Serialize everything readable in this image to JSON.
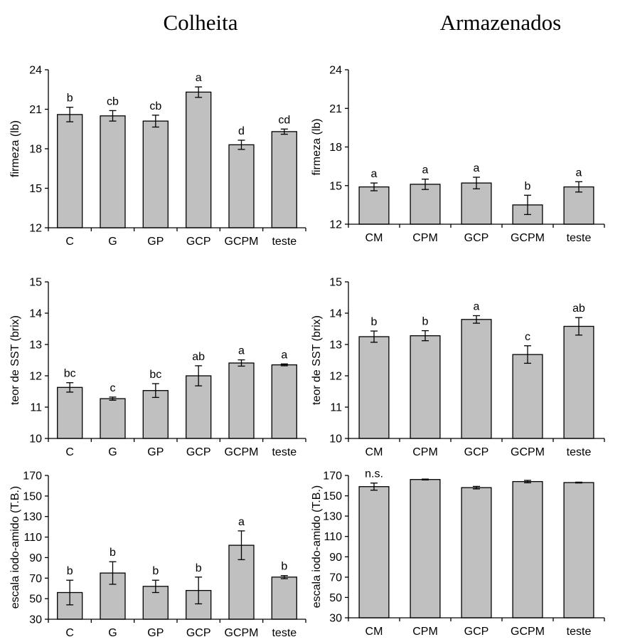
{
  "column_titles": [
    "Colheita",
    "Armazenados"
  ],
  "colors": {
    "bar_fill": "#c0c0c0",
    "stroke": "#000000"
  },
  "chart_data": [
    {
      "type": "bar",
      "column": "Colheita",
      "row": 1,
      "ylabel": "firmeza (lb)",
      "ylim": [
        12,
        24
      ],
      "yticks": [
        12,
        15,
        18,
        21,
        24
      ],
      "categories": [
        "C",
        "G",
        "GP",
        "GCP",
        "GCPM",
        "teste"
      ],
      "values": [
        20.6,
        20.5,
        20.1,
        22.3,
        18.3,
        19.3
      ],
      "errors": [
        0.55,
        0.4,
        0.45,
        0.4,
        0.35,
        0.2
      ],
      "labels": [
        "b",
        "cb",
        "cb",
        "a",
        "d",
        "cd"
      ]
    },
    {
      "type": "bar",
      "column": "Armazenados",
      "row": 1,
      "ylabel": "firmeza (lb)",
      "ylim": [
        12,
        24
      ],
      "yticks": [
        12,
        15,
        18,
        21,
        24
      ],
      "categories": [
        "CM",
        "CPM",
        "GCP",
        "GCPM",
        "teste"
      ],
      "values": [
        14.9,
        15.1,
        15.2,
        13.5,
        14.9
      ],
      "errors": [
        0.3,
        0.4,
        0.45,
        0.75,
        0.4
      ],
      "labels": [
        "a",
        "a",
        "a",
        "b",
        "a"
      ]
    },
    {
      "type": "bar",
      "column": "Colheita",
      "row": 2,
      "ylabel": "teor de SST (brix)",
      "ylim": [
        10,
        15
      ],
      "yticks": [
        10,
        11,
        12,
        13,
        14,
        15
      ],
      "categories": [
        "C",
        "G",
        "GP",
        "GCP",
        "GCPM",
        "teste"
      ],
      "values": [
        11.63,
        11.27,
        11.53,
        12.0,
        12.41,
        12.35
      ],
      "errors": [
        0.15,
        0.05,
        0.22,
        0.32,
        0.1,
        0.03
      ],
      "labels": [
        "bc",
        "c",
        "bc",
        "ab",
        "a",
        "a"
      ]
    },
    {
      "type": "bar",
      "column": "Armazenados",
      "row": 2,
      "ylabel": "teor de SST (brix)",
      "ylim": [
        10,
        15
      ],
      "yticks": [
        10,
        11,
        12,
        13,
        14,
        15
      ],
      "categories": [
        "CM",
        "CPM",
        "GCP",
        "GCPM",
        "teste"
      ],
      "values": [
        13.25,
        13.28,
        13.8,
        12.68,
        13.58
      ],
      "errors": [
        0.18,
        0.16,
        0.12,
        0.28,
        0.28
      ],
      "labels": [
        "b",
        "b",
        "a",
        "c",
        "ab"
      ]
    },
    {
      "type": "bar",
      "column": "Colheita",
      "row": 3,
      "ylabel": "escala iodo-amido (T.B.)",
      "ylim": [
        30,
        170
      ],
      "yticks": [
        30,
        50,
        70,
        90,
        110,
        130,
        150,
        170
      ],
      "categories": [
        "C",
        "G",
        "GP",
        "GCP",
        "GCPM",
        "teste"
      ],
      "values": [
        56,
        75,
        62,
        58,
        102,
        71
      ],
      "errors": [
        12,
        11,
        6,
        13,
        14,
        1.5
      ],
      "labels": [
        "b",
        "b",
        "b",
        "b",
        "a",
        "b"
      ]
    },
    {
      "type": "bar",
      "column": "Armazenados",
      "row": 3,
      "ylabel": "escala iodo-amido (T.B.)",
      "ylim": [
        30,
        170
      ],
      "yticks": [
        30,
        50,
        70,
        90,
        110,
        130,
        150,
        170
      ],
      "categories": [
        "CM",
        "CPM",
        "GCP",
        "GCPM",
        "teste"
      ],
      "values": [
        159,
        166,
        158,
        164,
        163
      ],
      "errors": [
        3.5,
        0.4,
        1.2,
        1.2,
        0.4
      ],
      "labels": [
        "n.s.",
        "",
        "",
        "",
        ""
      ]
    }
  ]
}
